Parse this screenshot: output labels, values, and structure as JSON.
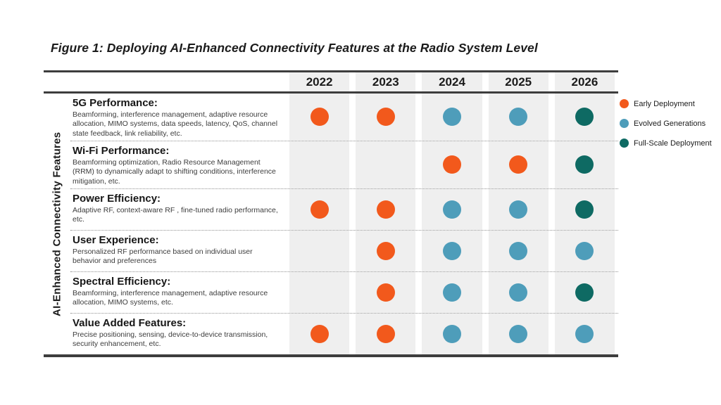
{
  "title": "Figure 1: Deploying AI-Enhanced Connectivity Features at the Radio System Level",
  "axis_label": "AI-Enhanced Connectivity Features",
  "years": [
    "2022",
    "2023",
    "2024",
    "2025",
    "2026"
  ],
  "colors": {
    "early": "#F2591C",
    "evolved": "#4E9DBA",
    "full": "#0E6A63",
    "column_background": "#EFEFEF",
    "rule": "#3D3D3D"
  },
  "legend": [
    {
      "key": "early",
      "label": "Early Deployment"
    },
    {
      "key": "evolved",
      "label": "Evolved Generations"
    },
    {
      "key": "full",
      "label": "Full-Scale Deployment"
    }
  ],
  "rows": [
    {
      "name": "5G Performance:",
      "description": "Beamforming, interference management, adaptive resource allocation, MIMO systems, data speeds, latency, QoS, channel state feedback, link reliability, etc.",
      "cells": [
        "early",
        "early",
        "evolved",
        "evolved",
        "full"
      ]
    },
    {
      "name": "Wi-Fi Performance:",
      "description": "Beamforming optimization, Radio Resource Management (RRM) to dynamically adapt to shifting conditions, interference mitigation, etc.",
      "cells": [
        null,
        null,
        "early",
        "early",
        "full"
      ]
    },
    {
      "name": "Power Efficiency:",
      "description": "Adaptive RF, context-aware RF , fine-tuned radio performance, etc.",
      "cells": [
        "early",
        "early",
        "evolved",
        "evolved",
        "full"
      ]
    },
    {
      "name": "User Experience:",
      "description": "Personalized RF performance based on individual user behavior and preferences",
      "cells": [
        null,
        "early",
        "evolved",
        "evolved",
        "evolved"
      ]
    },
    {
      "name": "Spectral Efficiency:",
      "description": "Beamforming, interference management, adaptive resource allocation, MIMO systems, etc.",
      "cells": [
        null,
        "early",
        "evolved",
        "evolved",
        "full"
      ]
    },
    {
      "name": "Value Added Features:",
      "description": "Precise positioning, sensing, device-to-device transmission, security enhancement,  etc.",
      "cells": [
        "early",
        "early",
        "evolved",
        "evolved",
        "evolved"
      ]
    }
  ],
  "chart_data": {
    "type": "heatmap",
    "title": "Figure 1: Deploying AI-Enhanced Connectivity Features at the Radio System Level",
    "x": [
      "2022",
      "2023",
      "2024",
      "2025",
      "2026"
    ],
    "xlabel": "",
    "ylabel": "AI-Enhanced Connectivity Features",
    "categories": [
      "5G Performance",
      "Wi-Fi Performance",
      "Power Efficiency",
      "User Experience",
      "Spectral Efficiency",
      "Value Added Features"
    ],
    "values": [
      [
        "Early Deployment",
        "Early Deployment",
        "Evolved Generations",
        "Evolved Generations",
        "Full-Scale Deployment"
      ],
      [
        null,
        null,
        "Early Deployment",
        "Early Deployment",
        "Full-Scale Deployment"
      ],
      [
        "Early Deployment",
        "Early Deployment",
        "Evolved Generations",
        "Evolved Generations",
        "Full-Scale Deployment"
      ],
      [
        null,
        "Early Deployment",
        "Evolved Generations",
        "Evolved Generations",
        "Evolved Generations"
      ],
      [
        null,
        "Early Deployment",
        "Evolved Generations",
        "Evolved Generations",
        "Full-Scale Deployment"
      ],
      [
        "Early Deployment",
        "Early Deployment",
        "Evolved Generations",
        "Evolved Generations",
        "Evolved Generations"
      ]
    ],
    "legend": [
      "Early Deployment",
      "Evolved Generations",
      "Full-Scale Deployment"
    ],
    "legend_position": "right",
    "grid": false
  }
}
